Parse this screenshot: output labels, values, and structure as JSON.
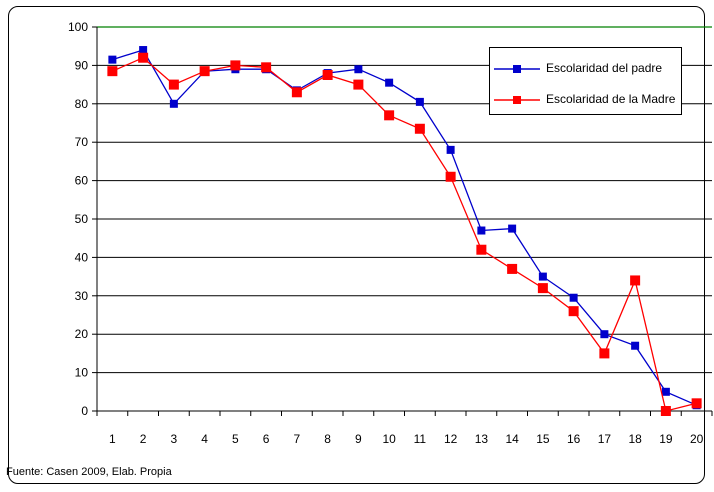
{
  "source_note": "Fuente: Casen 2009, Elab. Propia",
  "chart_data": {
    "type": "line",
    "title": "",
    "xlabel": "",
    "ylabel": "",
    "categories": [
      "1",
      "2",
      "3",
      "4",
      "5",
      "6",
      "7",
      "8",
      "9",
      "10",
      "11",
      "12",
      "13",
      "14",
      "15",
      "16",
      "17",
      "18",
      "19",
      "20"
    ],
    "ylim": [
      0,
      100
    ],
    "yticks": [
      "0",
      "10",
      "20",
      "30",
      "40",
      "50",
      "60",
      "70",
      "80",
      "90",
      "100"
    ],
    "grid": "horizontal",
    "legend_position": "top-right",
    "series": [
      {
        "name": "Escolaridad del padre",
        "color": "#0000CC",
        "marker": "square",
        "values": [
          91.5,
          94,
          80,
          88.5,
          89,
          89,
          83.5,
          88,
          89,
          85.5,
          80.5,
          68,
          47,
          47.5,
          35,
          29.5,
          20,
          17,
          5,
          1.5
        ]
      },
      {
        "name": "Escolaridad de la Madre",
        "color": "#FF0000",
        "marker": "square",
        "values": [
          88.5,
          92,
          85,
          88.5,
          90,
          89.5,
          83,
          87.5,
          85,
          77,
          73.5,
          61,
          42,
          37,
          32,
          26,
          15,
          34,
          0,
          2
        ]
      }
    ]
  }
}
